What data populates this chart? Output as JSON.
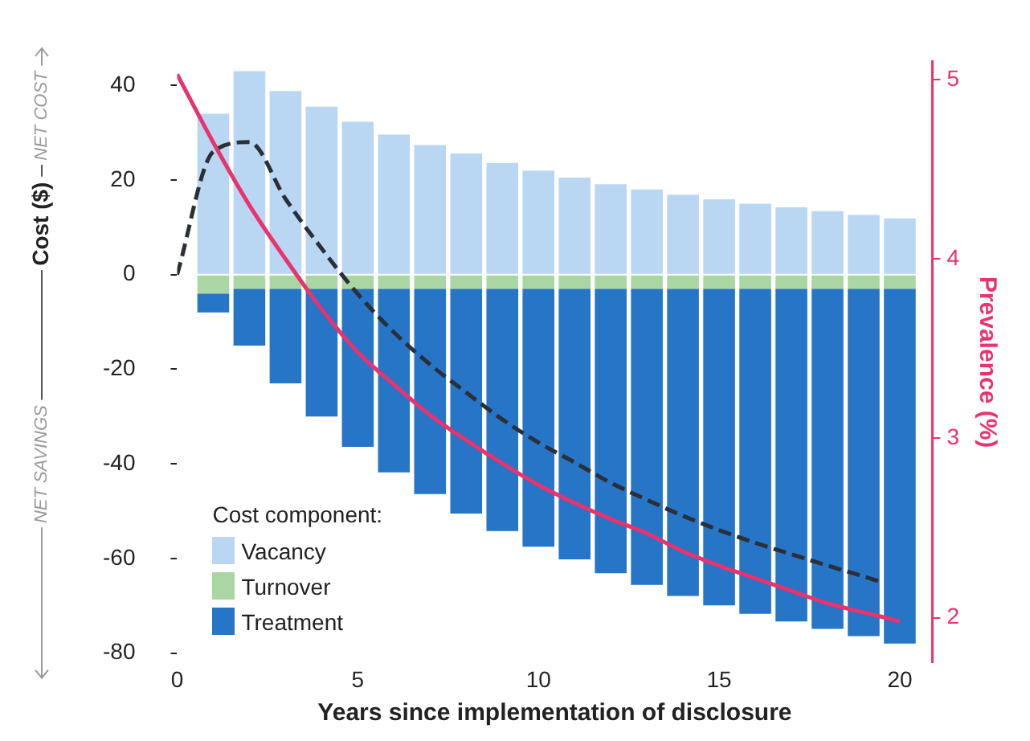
{
  "chart_data": {
    "type": "bar",
    "stacked": true,
    "xlabel": "Years since implementation of disclosure",
    "ylabel": "Cost ($)",
    "y2label": "Prevalence (%)",
    "legend_title": "Cost component:",
    "annotations": [
      "NET COST",
      "NET SAVINGS"
    ],
    "x": [
      1,
      2,
      3,
      4,
      5,
      6,
      7,
      8,
      9,
      10,
      11,
      12,
      13,
      14,
      15,
      16,
      17,
      18,
      19,
      20
    ],
    "series": [
      {
        "name": "Vacancy",
        "color": "#b9d7f3",
        "values": [
          34,
          43,
          38.8,
          35.5,
          32.3,
          29.6,
          27.4,
          25.6,
          23.6,
          22,
          20.5,
          19.1,
          18,
          16.9,
          15.9,
          15,
          14.2,
          13.4,
          12.6,
          11.9
        ]
      },
      {
        "name": "Turnover",
        "color": "#a9d6a2",
        "values": [
          -4,
          -3,
          -3,
          -3,
          -3,
          -3,
          -3,
          -3,
          -3,
          -3,
          -3,
          -3,
          -3,
          -3,
          -3,
          -3,
          -3,
          -3,
          -3,
          -3
        ]
      },
      {
        "name": "Treatment",
        "color": "#2675c6",
        "values": [
          -4,
          -12,
          -20,
          -27,
          -33.4,
          -38.8,
          -43.4,
          -47.5,
          -51.2,
          -54.5,
          -57.2,
          -60.1,
          -62.6,
          -64.9,
          -66.9,
          -68.7,
          -70.3,
          -71.9,
          -73.4,
          -75
        ]
      },
      {
        "type": "line",
        "line_style": "dashed",
        "color": "#2b2f38",
        "x": [
          0,
          1,
          2,
          3,
          4,
          5,
          6,
          7,
          8,
          9,
          10,
          11,
          12,
          13,
          14,
          15,
          16,
          17,
          18,
          19,
          19.5
        ],
        "values": [
          0,
          26,
          28,
          16,
          5.5,
          -4.1,
          -12.2,
          -19,
          -24.9,
          -30.6,
          -35.5,
          -39.7,
          -44,
          -47.6,
          -51,
          -54,
          -56.7,
          -59.1,
          -61.5,
          -63.8,
          -65
        ]
      },
      {
        "type": "line",
        "line_style": "solid",
        "axis": "y2",
        "color": "#e8336e",
        "x": [
          0,
          1,
          2,
          3,
          4,
          5,
          6,
          7,
          8,
          9,
          10,
          11,
          12,
          13,
          14,
          15,
          16,
          17,
          18,
          19,
          20
        ],
        "values": [
          5.03,
          4.65,
          4.3,
          4.0,
          3.72,
          3.48,
          3.3,
          3.13,
          2.99,
          2.86,
          2.74,
          2.64,
          2.55,
          2.47,
          2.37,
          2.29,
          2.22,
          2.15,
          2.08,
          2.03,
          1.98
        ]
      }
    ],
    "xlim": [
      0,
      20.9
    ],
    "xticks": [
      0,
      5,
      10,
      15,
      20
    ],
    "ylim": [
      -82,
      45
    ],
    "yticks": [
      -80,
      -60,
      -40,
      -20,
      0,
      20,
      40
    ],
    "y2lim": [
      1.75,
      5.1
    ],
    "y2ticks": [
      2,
      3,
      4,
      5
    ],
    "grid": false,
    "marker": "none",
    "legend": "bottom left"
  }
}
